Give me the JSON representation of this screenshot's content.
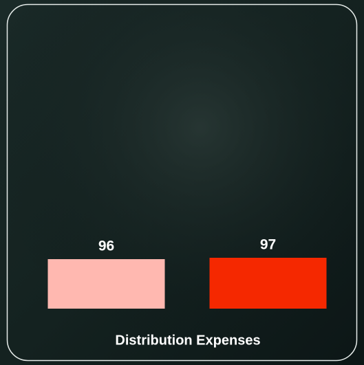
{
  "chart_data": {
    "type": "bar",
    "title": "Distribution Expenses",
    "categories": [
      null,
      null
    ],
    "values": [
      96,
      97
    ],
    "colors": [
      "#ffb8b0",
      "#f52800"
    ],
    "ylim": [
      60,
      100
    ]
  }
}
